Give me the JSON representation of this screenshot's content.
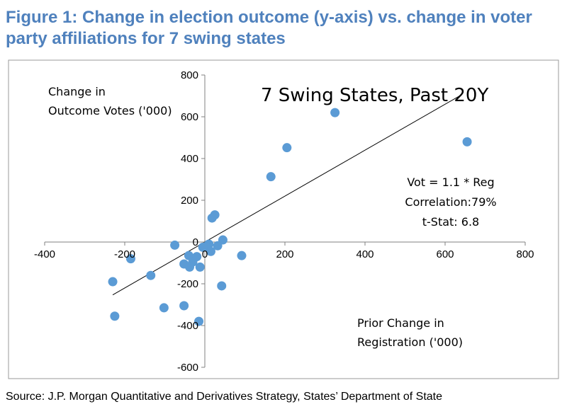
{
  "figure": {
    "title": "Figure 1: Change in election outcome (y-axis) vs. change in voter party affiliations for 7 swing states",
    "source": "Source: J.P. Morgan Quantitative and Derivatives Strategy, States’ Department of State"
  },
  "colors": {
    "title": "#4f81bd",
    "marker": "#5b9bd5",
    "axis": "#808080",
    "border": "#9a9a9a",
    "trendline": "#000000"
  },
  "chart_data": {
    "type": "scatter",
    "title": "7 Swing States, Past 20Y",
    "xlabel": "Prior Change in Registration ('000)",
    "xlabel_lines": [
      "Prior Change in",
      "Registration ('000)"
    ],
    "ylabel": "Change in Outcome Votes ('000)",
    "ylabel_lines": [
      "Change in",
      "Outcome Votes ('000)"
    ],
    "xlim": [
      -400,
      800
    ],
    "ylim": [
      -600,
      800
    ],
    "xticks": [
      -400,
      -200,
      0,
      200,
      400,
      600,
      800
    ],
    "yticks": [
      -600,
      -400,
      -200,
      0,
      200,
      400,
      600,
      800
    ],
    "grid": false,
    "annotations": [
      "Vot = 1.1 * Reg",
      "Correlation:79%",
      "t-Stat: 6.8"
    ],
    "trendline": {
      "slope": 1.1,
      "x": [
        -230,
        640
      ]
    },
    "points": [
      {
        "x": 325,
        "y": 620
      },
      {
        "x": 655,
        "y": 480
      },
      {
        "x": 205,
        "y": 452
      },
      {
        "x": 165,
        "y": 313
      },
      {
        "x": 25,
        "y": 130
      },
      {
        "x": 18,
        "y": 115
      },
      {
        "x": 45,
        "y": 10
      },
      {
        "x": 32,
        "y": -18
      },
      {
        "x": 10,
        "y": -10
      },
      {
        "x": 2,
        "y": -22
      },
      {
        "x": -5,
        "y": -25
      },
      {
        "x": 15,
        "y": -45
      },
      {
        "x": 92,
        "y": -65
      },
      {
        "x": -75,
        "y": -15
      },
      {
        "x": -185,
        "y": -80
      },
      {
        "x": -40,
        "y": -65
      },
      {
        "x": -20,
        "y": -70
      },
      {
        "x": -30,
        "y": -95
      },
      {
        "x": -52,
        "y": -105
      },
      {
        "x": -38,
        "y": -120
      },
      {
        "x": -12,
        "y": -120
      },
      {
        "x": -135,
        "y": -160
      },
      {
        "x": -230,
        "y": -190
      },
      {
        "x": 42,
        "y": -210
      },
      {
        "x": -225,
        "y": -355
      },
      {
        "x": -102,
        "y": -315
      },
      {
        "x": -52,
        "y": -305
      },
      {
        "x": -15,
        "y": -380
      }
    ]
  }
}
